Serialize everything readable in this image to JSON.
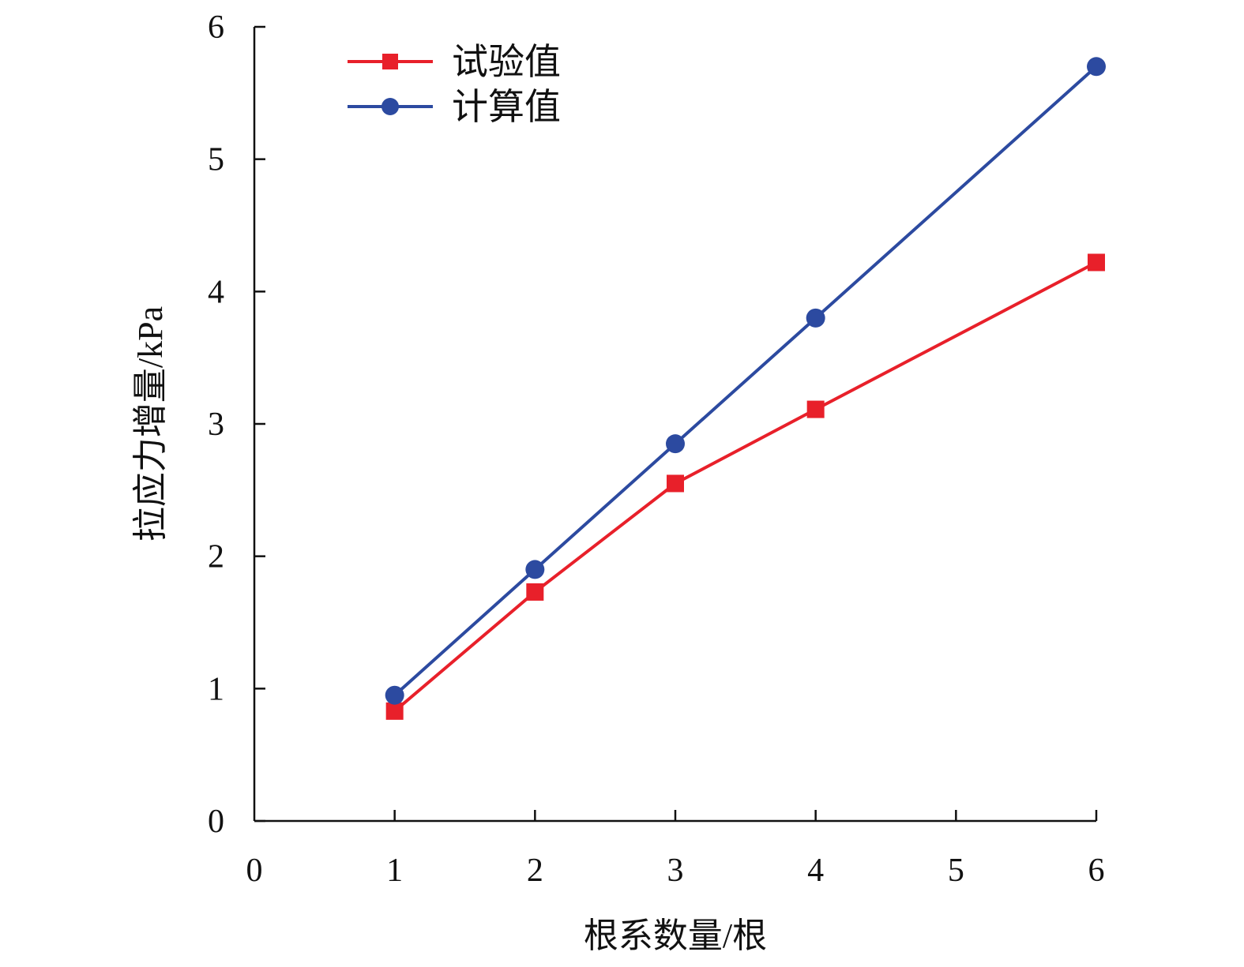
{
  "colors": {
    "background": "#ffffff",
    "axis": "#111111",
    "series_test": "#e8202a",
    "series_calc": "#2c4aa0"
  },
  "chart_data": {
    "type": "line",
    "xlabel": "根系数量/根",
    "ylabel": "拉应力增量/kPa",
    "xlim": [
      0,
      6
    ],
    "ylim": [
      0,
      6
    ],
    "x_ticks": [
      "0",
      "1",
      "2",
      "3",
      "4",
      "5",
      "6"
    ],
    "y_ticks": [
      "0",
      "1",
      "2",
      "3",
      "4",
      "5",
      "6"
    ],
    "grid": false,
    "legend_position": "top-left",
    "series": [
      {
        "name": "试验值",
        "marker": "square",
        "color": "#e8202a",
        "x": [
          1,
          2,
          3,
          4,
          6
        ],
        "y": [
          0.83,
          1.73,
          2.55,
          3.11,
          4.22
        ]
      },
      {
        "name": "计算值",
        "marker": "circle",
        "color": "#2c4aa0",
        "x": [
          1,
          2,
          3,
          4,
          6
        ],
        "y": [
          0.95,
          1.9,
          2.85,
          3.8,
          5.7
        ]
      }
    ]
  }
}
